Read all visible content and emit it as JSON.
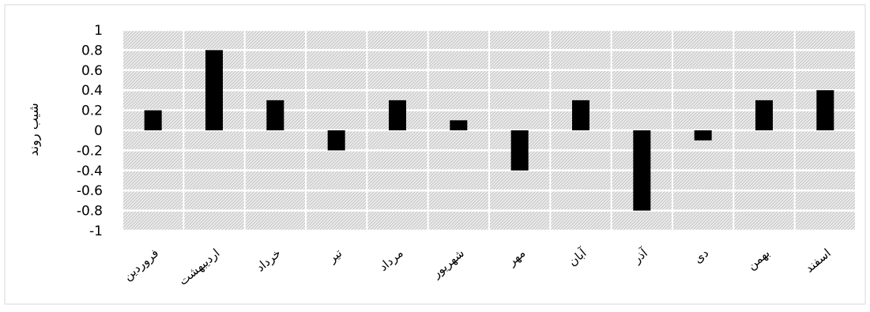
{
  "chart_data": {
    "type": "bar",
    "title": "",
    "xlabel": "",
    "ylabel": "شیب روند",
    "ylim": [
      -1,
      1
    ],
    "yticks": [
      1,
      0.8,
      0.6,
      0.4,
      0.2,
      0,
      -0.2,
      -0.4,
      -0.6,
      -0.8,
      -1
    ],
    "ytick_labels": [
      "1",
      "0.8",
      "0.6",
      "0.4",
      "0.2",
      "0",
      "-0.2",
      "-0.4",
      "-0.6",
      "-0.8",
      "-1"
    ],
    "categories": [
      "فروردین",
      "اردیبهشت",
      "خرداد",
      "تیر",
      "مرداد",
      "شهریور",
      "مهر",
      "آبان",
      "آذر",
      "دی",
      "بهمن",
      "اسفند"
    ],
    "values": [
      0.2,
      0.8,
      0.3,
      -0.2,
      0.3,
      0.1,
      -0.4,
      0.3,
      -0.8,
      -0.1,
      0.3,
      0.4
    ],
    "grid": true,
    "bar_color": "#000000",
    "plot_background": "hatched light gray"
  }
}
